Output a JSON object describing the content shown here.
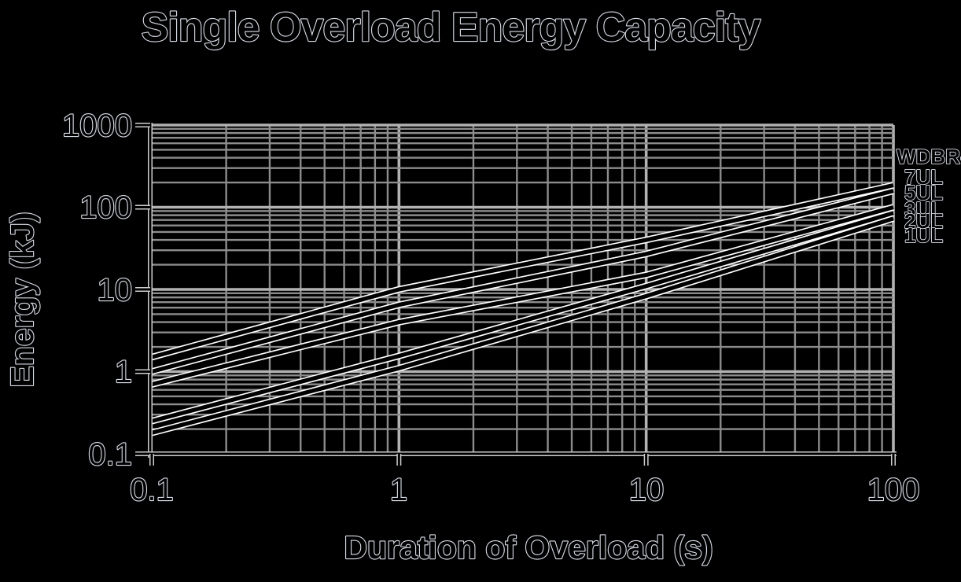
{
  "page": {
    "background": "#000000"
  },
  "chart": {
    "title": "Single Overload Energy Capacity",
    "xlabel": "Duration of Overload (s)",
    "ylabel": "Energy (kJ)",
    "legend_title": "WDBR-",
    "x_ticks": [
      "0.1",
      "1",
      "10",
      "100"
    ],
    "y_ticks": [
      "1000",
      "100",
      "10",
      "1",
      "0.1"
    ]
  },
  "chart_data": {
    "type": "line",
    "title": "Single Overload Energy Capacity",
    "xlabel": "Duration of Overload (s)",
    "ylabel": "Energy (kJ)",
    "x_scale": "log",
    "y_scale": "log",
    "xlim": [
      0.1,
      100
    ],
    "ylim": [
      0.1,
      1000
    ],
    "grid": true,
    "legend_position": "right",
    "legend_title": "WDBR-",
    "x": [
      0.1,
      1,
      10,
      100
    ],
    "series": [
      {
        "name": "7UL",
        "values": [
          1.5,
          10,
          40,
          185
        ]
      },
      {
        "name": "5UL",
        "values": [
          1.0,
          6.5,
          27,
          158
        ]
      },
      {
        "name": "3UL",
        "values": [
          0.7,
          4.0,
          15,
          100
        ]
      },
      {
        "name": "2UL",
        "values": [
          0.25,
          1.55,
          11,
          85
        ]
      },
      {
        "name": "1UL",
        "values": [
          0.18,
          1.1,
          8.3,
          73
        ]
      }
    ],
    "colors": {
      "background": "#000000",
      "line": "#000000",
      "line_halo": "#ffffff",
      "grid_minor": "#8c8c8c",
      "grid_major": "#b2b2b2",
      "axis": "#000000",
      "axis_halo": "#cfcfcf",
      "text": "#000000",
      "text_outline": "#d9dde6"
    }
  }
}
